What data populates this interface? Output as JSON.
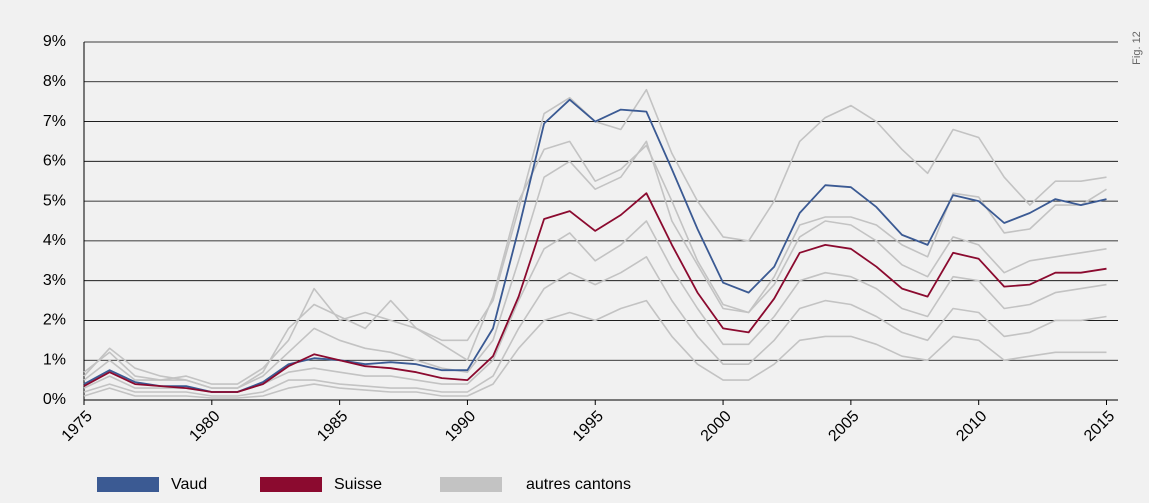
{
  "chart_data": {
    "type": "line",
    "figure_label": "Fig. 12",
    "x": [
      1975,
      1976,
      1977,
      1978,
      1979,
      1980,
      1981,
      1982,
      1983,
      1984,
      1985,
      1986,
      1987,
      1988,
      1989,
      1990,
      1991,
      1992,
      1993,
      1994,
      1995,
      1996,
      1997,
      1998,
      1999,
      2000,
      2001,
      2002,
      2003,
      2004,
      2005,
      2006,
      2007,
      2008,
      2009,
      2010,
      2011,
      2012,
      2013,
      2014,
      2015
    ],
    "xlim": [
      1975,
      2015.45
    ],
    "xticks": [
      1975,
      1980,
      1985,
      1990,
      1995,
      2000,
      2005,
      2010,
      2015
    ],
    "ylim": [
      0,
      9
    ],
    "yticks": [
      {
        "value": 0,
        "label": "0%"
      },
      {
        "value": 1,
        "label": "1%"
      },
      {
        "value": 2,
        "label": "2%"
      },
      {
        "value": 3,
        "label": "3%"
      },
      {
        "value": 4,
        "label": "4%"
      },
      {
        "value": 5,
        "label": "5%"
      },
      {
        "value": 6,
        "label": "6%"
      },
      {
        "value": 7,
        "label": "7%"
      },
      {
        "value": 8,
        "label": "8%"
      },
      {
        "value": 9,
        "label": "9%"
      }
    ],
    "grid": true,
    "legend": "bottom",
    "series": [
      {
        "name": "Vaud",
        "color": "#3b5a93",
        "values": [
          0.4,
          0.75,
          0.45,
          0.35,
          0.35,
          0.2,
          0.2,
          0.45,
          0.9,
          1.05,
          1.0,
          0.9,
          0.95,
          0.9,
          0.75,
          0.75,
          1.8,
          4.3,
          6.95,
          7.55,
          7.0,
          7.3,
          7.25,
          5.8,
          4.3,
          2.95,
          2.7,
          3.35,
          4.7,
          5.4,
          5.35,
          4.85,
          4.15,
          3.9,
          5.15,
          5.0,
          4.45,
          4.7,
          5.05,
          4.9,
          5.05
        ]
      },
      {
        "name": "Suisse",
        "color": "#8b0a2f",
        "values": [
          0.35,
          0.7,
          0.4,
          0.35,
          0.3,
          0.2,
          0.2,
          0.4,
          0.85,
          1.15,
          1.0,
          0.85,
          0.8,
          0.7,
          0.55,
          0.5,
          1.1,
          2.6,
          4.55,
          4.75,
          4.25,
          4.65,
          5.2,
          3.9,
          2.7,
          1.8,
          1.7,
          2.55,
          3.7,
          3.9,
          3.8,
          3.35,
          2.8,
          2.6,
          3.7,
          3.55,
          2.85,
          2.9,
          3.2,
          3.2,
          3.3
        ]
      },
      {
        "name": "autres cantons",
        "color": "#c3c3c3",
        "lines": [
          [
            0.7,
            1.2,
            0.6,
            0.5,
            0.6,
            0.4,
            0.4,
            0.8,
            1.5,
            2.8,
            2.0,
            2.2,
            2.0,
            1.8,
            1.5,
            1.5,
            2.5,
            4.8,
            7.2,
            7.6,
            7.0,
            6.8,
            7.8,
            6.2,
            5.0,
            4.1,
            4.0,
            5.0,
            6.5,
            7.1,
            7.4,
            7.0,
            6.3,
            5.7,
            6.8,
            6.6,
            5.6,
            4.9,
            5.5,
            5.5,
            5.6
          ],
          [
            0.5,
            1.0,
            0.5,
            0.5,
            0.5,
            0.3,
            0.3,
            0.7,
            1.8,
            2.4,
            2.1,
            1.8,
            2.5,
            1.8,
            1.4,
            1.0,
            2.6,
            5.0,
            6.3,
            6.5,
            5.5,
            5.8,
            6.4,
            5.0,
            3.5,
            2.4,
            2.2,
            3.1,
            4.4,
            4.6,
            4.6,
            4.4,
            3.9,
            3.6,
            5.2,
            5.1,
            4.2,
            4.3,
            4.9,
            4.9,
            5.3
          ],
          [
            0.6,
            1.3,
            0.8,
            0.6,
            0.5,
            0.3,
            0.3,
            0.6,
            1.2,
            1.8,
            1.5,
            1.3,
            1.2,
            1.0,
            0.8,
            0.7,
            1.5,
            3.5,
            5.6,
            6.0,
            5.3,
            5.6,
            6.5,
            4.5,
            3.4,
            2.3,
            2.2,
            2.9,
            4.1,
            4.5,
            4.4,
            4.0,
            3.4,
            3.1,
            4.1,
            3.9,
            3.2,
            3.5,
            3.6,
            3.7,
            3.8
          ],
          [
            0.3,
            0.6,
            0.3,
            0.3,
            0.3,
            0.2,
            0.2,
            0.4,
            0.7,
            0.8,
            0.7,
            0.6,
            0.6,
            0.5,
            0.4,
            0.4,
            1.0,
            2.5,
            3.8,
            4.2,
            3.5,
            3.9,
            4.5,
            3.3,
            2.3,
            1.4,
            1.4,
            2.1,
            3.0,
            3.2,
            3.1,
            2.8,
            2.3,
            2.1,
            3.1,
            3.0,
            2.3,
            2.4,
            2.7,
            2.8,
            2.9
          ],
          [
            0.2,
            0.4,
            0.2,
            0.2,
            0.2,
            0.1,
            0.1,
            0.2,
            0.5,
            0.5,
            0.4,
            0.35,
            0.3,
            0.3,
            0.2,
            0.2,
            0.6,
            1.8,
            2.8,
            3.2,
            2.9,
            3.2,
            3.6,
            2.5,
            1.6,
            0.9,
            0.9,
            1.5,
            2.3,
            2.5,
            2.4,
            2.1,
            1.7,
            1.5,
            2.3,
            2.2,
            1.6,
            1.7,
            2.0,
            2.0,
            2.1
          ],
          [
            0.1,
            0.3,
            0.1,
            0.1,
            0.1,
            0.05,
            0.05,
            0.1,
            0.3,
            0.4,
            0.3,
            0.25,
            0.2,
            0.2,
            0.1,
            0.1,
            0.4,
            1.3,
            2.0,
            2.2,
            2.0,
            2.3,
            2.5,
            1.6,
            0.9,
            0.5,
            0.5,
            0.9,
            1.5,
            1.6,
            1.6,
            1.4,
            1.1,
            1.0,
            1.6,
            1.5,
            1.0,
            1.1,
            1.2,
            1.2,
            1.2
          ]
        ]
      }
    ]
  }
}
